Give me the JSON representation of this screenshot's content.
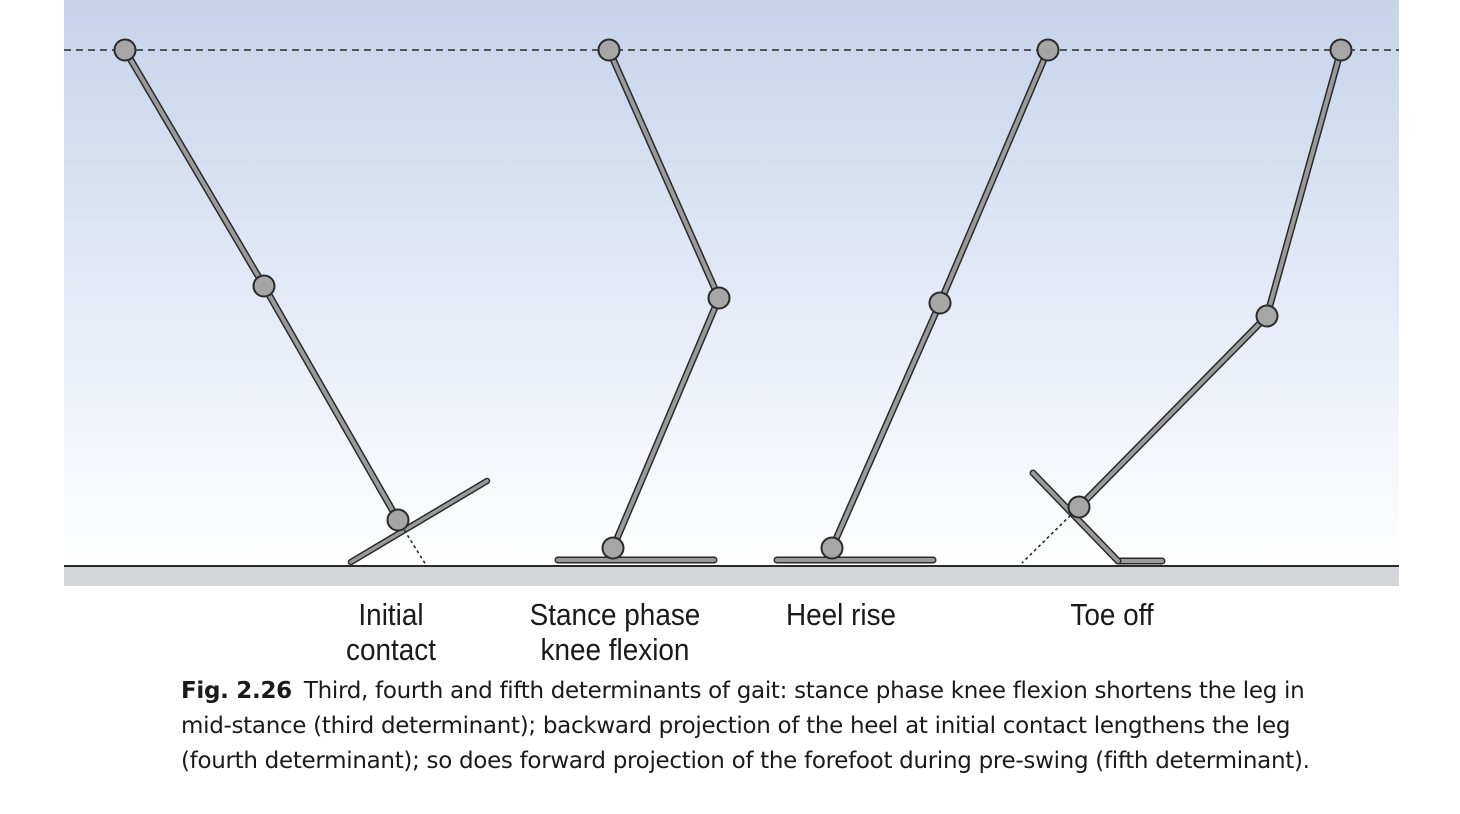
{
  "phases": [
    {
      "label_line1": "Initial",
      "label_line2": "contact"
    },
    {
      "label_line1": "Stance phase",
      "label_line2": "knee flexion"
    },
    {
      "label_line1": "Heel rise",
      "label_line2": ""
    },
    {
      "label_line1": "Toe off",
      "label_line2": ""
    }
  ],
  "caption": {
    "figure_number": "Fig. 2.26",
    "text": "Third, fourth and fifth determinants of gait: stance phase knee flexion shortens the leg in mid-stance (third determinant); backward projection of the heel at initial contact lengthens the leg (fourth determinant); so does forward projection of the forefoot during pre-swing (fifth determinant)."
  },
  "colors": {
    "sky_top": "#c7d3eb",
    "sky_bottom": "#ffffff",
    "ground": "#d4d5d8",
    "limb": "#9a9a9a",
    "joint": "#a6a6a6",
    "outline": "#2a2a2a"
  }
}
